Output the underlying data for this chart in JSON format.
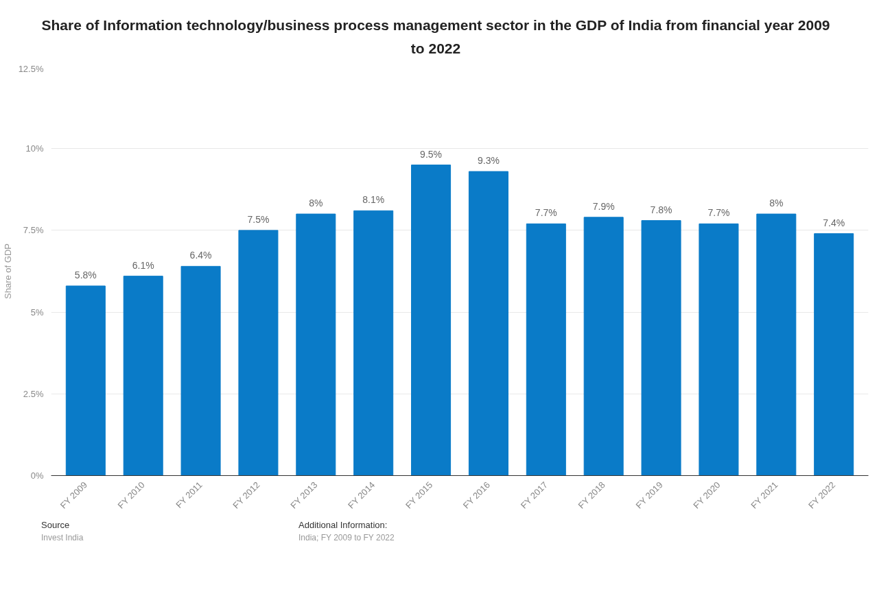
{
  "chart_data": {
    "type": "bar",
    "title": "Share of Information technology/business process management sector in the GDP of India from financial year 2009 to 2022",
    "ylabel": "Share of GDP",
    "categories": [
      "FY 2009",
      "FY 2010",
      "FY 2011",
      "FY 2012",
      "FY 2013",
      "FY 2014",
      "FY 2015",
      "FY 2016",
      "FY 2017",
      "FY 2018",
      "FY 2019",
      "FY 2020",
      "FY 2021",
      "FY 2022"
    ],
    "values": [
      5.8,
      6.1,
      6.4,
      7.5,
      8,
      8.1,
      9.5,
      9.3,
      7.7,
      7.9,
      7.8,
      7.7,
      8,
      7.4
    ],
    "value_labels": [
      "5.8%",
      "6.1%",
      "6.4%",
      "7.5%",
      "8%",
      "8.1%",
      "9.5%",
      "9.3%",
      "7.7%",
      "7.9%",
      "7.8%",
      "7.7%",
      "8%",
      "7.4%"
    ],
    "color": "#0a7bc8",
    "ylim": [
      0,
      12.5
    ],
    "yticks": [
      {
        "value": 0,
        "label": "0%"
      },
      {
        "value": 2.5,
        "label": "2.5%"
      },
      {
        "value": 5,
        "label": "5%"
      },
      {
        "value": 7.5,
        "label": "7.5%"
      },
      {
        "value": 10,
        "label": "10%"
      },
      {
        "value": 12.5,
        "label": "12.5%"
      }
    ],
    "grid": "y",
    "annotations": [
      "Source",
      "Invest India",
      "Additional Information:",
      "India; FY 2009 to FY 2022"
    ]
  }
}
